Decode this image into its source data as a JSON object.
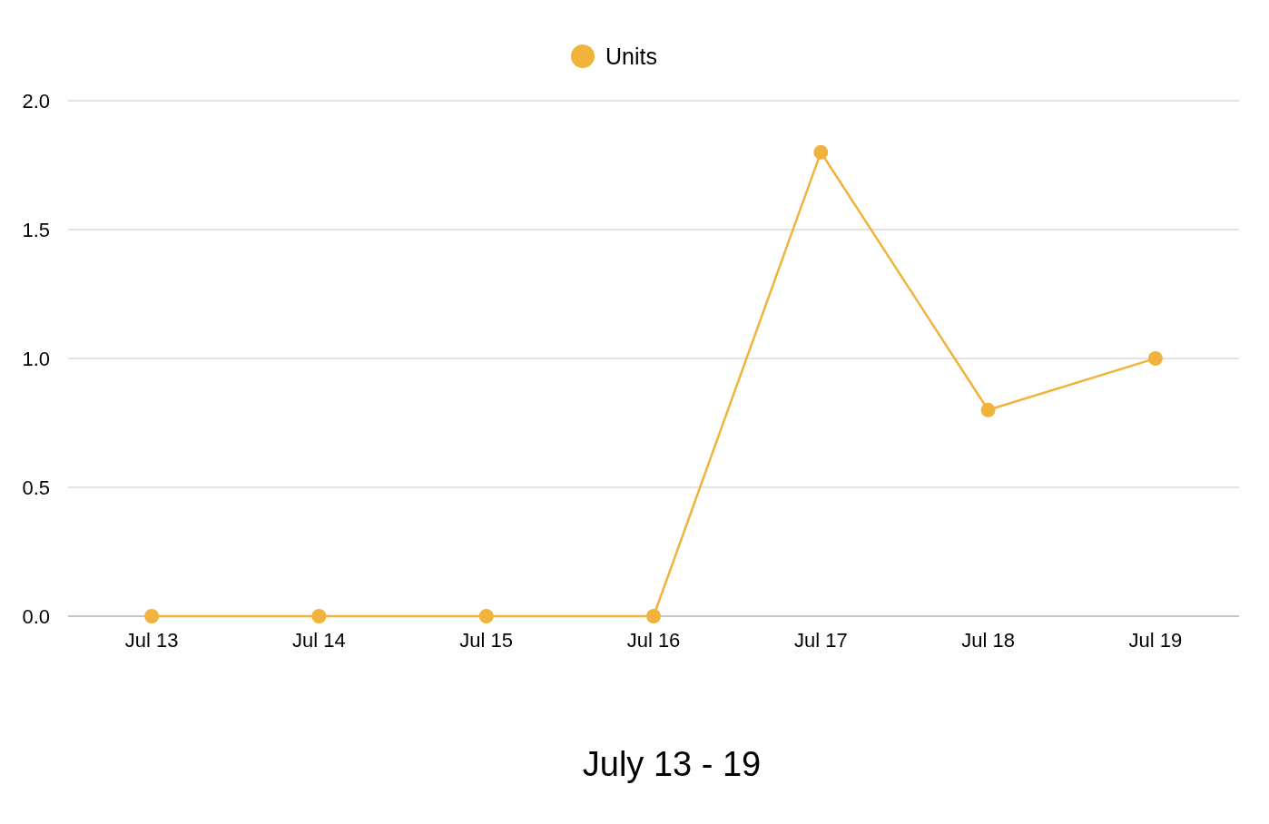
{
  "chart_data": {
    "type": "line",
    "xlabel": "July 13 - 19",
    "categories": [
      "Jul 13",
      "Jul 14",
      "Jul 15",
      "Jul 16",
      "Jul 17",
      "Jul 18",
      "Jul 19"
    ],
    "series": [
      {
        "name": "Units",
        "color": "#f2b33d",
        "values": [
          0,
          0,
          0,
          0,
          1.8,
          0.8,
          1.0
        ]
      }
    ],
    "ylim": [
      0,
      2
    ],
    "yticks": [
      {
        "value": 0,
        "label": "0.0"
      },
      {
        "value": 0.5,
        "label": "0.5"
      },
      {
        "value": 1,
        "label": "1.0"
      },
      {
        "value": 1.5,
        "label": "1.5"
      },
      {
        "value": 2,
        "label": "2.0"
      }
    ],
    "grid": "y",
    "legend": "top",
    "marker": "circle",
    "line_style": "solid"
  }
}
